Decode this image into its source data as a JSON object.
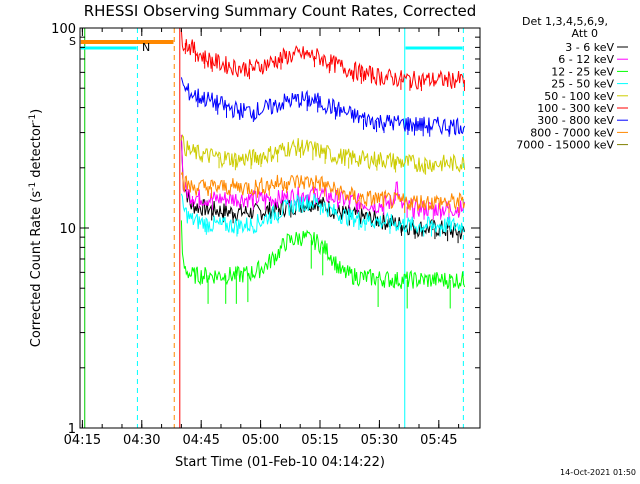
{
  "chart_data": {
    "type": "line",
    "title": "RHESSI Observing Summary Count Rates, Corrected",
    "xlabel": "Start Time (01-Feb-10 04:14:22)",
    "ylabel_main": "Corrected Count Rate (s",
    "ylabel_sup1": "-1",
    "ylabel_mid": " detector",
    "ylabel_sup2": "-1",
    "ylabel_end": ")",
    "yscale": "log",
    "ylim": [
      1,
      100
    ],
    "xlim_minutes": [
      0,
      101
    ],
    "x_ticks": [
      {
        "label": "04:15",
        "minute": 0.6
      },
      {
        "label": "04:30",
        "minute": 15.6
      },
      {
        "label": "04:45",
        "minute": 30.6
      },
      {
        "label": "05:00",
        "minute": 45.6
      },
      {
        "label": "05:15",
        "minute": 60.6
      },
      {
        "label": "05:30",
        "minute": 75.6
      },
      {
        "label": "05:45",
        "minute": 90.6
      }
    ],
    "y_ticks": [
      {
        "label": "100",
        "value": 100
      },
      {
        "label": "10",
        "value": 10
      },
      {
        "label": "1",
        "value": 1
      }
    ],
    "legend_header": [
      "Det 1,3,4,5,6,9,",
      "Att 0"
    ],
    "legend_position": "top-right",
    "series": [
      {
        "name": "3 - 6 keV",
        "color": "#000000",
        "start": 25.6,
        "end": 97.2,
        "points": [
          [
            25.6,
            28
          ],
          [
            26,
            17
          ],
          [
            28,
            13
          ],
          [
            32,
            12.5
          ],
          [
            38,
            12
          ],
          [
            45,
            12
          ],
          [
            50,
            12.5
          ],
          [
            55,
            13
          ],
          [
            60,
            13.5
          ],
          [
            65,
            12
          ],
          [
            70,
            11.5
          ],
          [
            75,
            11
          ],
          [
            80,
            10.5
          ],
          [
            85,
            10
          ],
          [
            90,
            10
          ],
          [
            96,
            9.5
          ]
        ]
      },
      {
        "name": "6 - 12 keV",
        "color": "#ff00ff",
        "start": 25.6,
        "end": 97.2,
        "points": [
          [
            25.6,
            32
          ],
          [
            26,
            16
          ],
          [
            28,
            14.5
          ],
          [
            32,
            14
          ],
          [
            38,
            14
          ],
          [
            45,
            14
          ],
          [
            50,
            14
          ],
          [
            55,
            14.5
          ],
          [
            60,
            15
          ],
          [
            65,
            14
          ],
          [
            70,
            13.5
          ],
          [
            75,
            13
          ],
          [
            79,
            13.5
          ],
          [
            80,
            17
          ],
          [
            80.8,
            13
          ],
          [
            85,
            12.5
          ],
          [
            90,
            12.5
          ],
          [
            96,
            12.5
          ]
        ]
      },
      {
        "name": "12 - 25 keV",
        "color": "#00ff00",
        "start": 25.6,
        "end": 97.2,
        "points": [
          [
            25.6,
            10
          ],
          [
            26,
            6.5
          ],
          [
            28,
            5.8
          ],
          [
            32,
            5.8
          ],
          [
            36,
            5.8
          ],
          [
            40,
            5.8
          ],
          [
            44,
            6
          ],
          [
            47,
            6.5
          ],
          [
            50,
            7.5
          ],
          [
            52,
            8.5
          ],
          [
            56,
            9
          ],
          [
            60,
            8.5
          ],
          [
            63,
            7.5
          ],
          [
            66,
            6
          ],
          [
            70,
            5.7
          ],
          [
            75,
            5.6
          ],
          [
            80,
            5.5
          ],
          [
            85,
            5.5
          ],
          [
            90,
            5.5
          ],
          [
            96,
            5.5
          ]
        ]
      },
      {
        "name": "25 - 50 keV",
        "color": "#00ffff",
        "start": 25.6,
        "end": 97.2,
        "points": [
          [
            25.6,
            14
          ],
          [
            26,
            12.5
          ],
          [
            28,
            11
          ],
          [
            32,
            10.5
          ],
          [
            36,
            10.3
          ],
          [
            40,
            10.3
          ],
          [
            44,
            10.4
          ],
          [
            48,
            11.5
          ],
          [
            52,
            12.5
          ],
          [
            56,
            13.5
          ],
          [
            60,
            13.5
          ],
          [
            64,
            12
          ],
          [
            68,
            11.3
          ],
          [
            72,
            11
          ],
          [
            76,
            10.8
          ],
          [
            80,
            10.5
          ],
          [
            84,
            10.3
          ],
          [
            88,
            10.3
          ],
          [
            92,
            10.3
          ],
          [
            96,
            10.3
          ]
        ]
      },
      {
        "name": "50 - 100 keV",
        "color": "#cccc00",
        "start": 25.6,
        "end": 97.2,
        "points": [
          [
            25.6,
            30
          ],
          [
            26,
            26
          ],
          [
            28,
            24
          ],
          [
            32,
            23
          ],
          [
            36,
            22.5
          ],
          [
            40,
            22
          ],
          [
            44,
            22.5
          ],
          [
            48,
            23.5
          ],
          [
            52,
            25
          ],
          [
            56,
            25.5
          ],
          [
            60,
            24.5
          ],
          [
            64,
            23
          ],
          [
            68,
            22.5
          ],
          [
            72,
            22
          ],
          [
            76,
            22
          ],
          [
            80,
            21.5
          ],
          [
            84,
            21
          ],
          [
            88,
            21
          ],
          [
            92,
            21
          ],
          [
            96,
            21
          ]
        ]
      },
      {
        "name": "100 - 300 keV",
        "color": "#ff0000",
        "start": 25.6,
        "end": 97.2,
        "points": [
          [
            25.6,
            95
          ],
          [
            26,
            86
          ],
          [
            28,
            80
          ],
          [
            32,
            70
          ],
          [
            36,
            66
          ],
          [
            40,
            63
          ],
          [
            44,
            63
          ],
          [
            48,
            67
          ],
          [
            52,
            72
          ],
          [
            56,
            74
          ],
          [
            60,
            72
          ],
          [
            64,
            66
          ],
          [
            68,
            62
          ],
          [
            72,
            59
          ],
          [
            76,
            57
          ],
          [
            80,
            56
          ],
          [
            84,
            55
          ],
          [
            88,
            55
          ],
          [
            92,
            55
          ],
          [
            96,
            55
          ]
        ]
      },
      {
        "name": "300 - 800 keV",
        "color": "#0000ff",
        "start": 25.6,
        "end": 97.2,
        "points": [
          [
            25.6,
            60
          ],
          [
            26,
            50
          ],
          [
            28,
            47
          ],
          [
            32,
            44
          ],
          [
            36,
            41
          ],
          [
            40,
            38.5
          ],
          [
            44,
            38.5
          ],
          [
            48,
            40
          ],
          [
            52,
            43
          ],
          [
            56,
            44
          ],
          [
            60,
            43
          ],
          [
            64,
            40
          ],
          [
            68,
            37
          ],
          [
            72,
            35
          ],
          [
            76,
            34
          ],
          [
            80,
            33.5
          ],
          [
            84,
            33
          ],
          [
            88,
            32.5
          ],
          [
            92,
            32.5
          ],
          [
            96,
            32.5
          ]
        ]
      },
      {
        "name": "800 - 7000 keV",
        "color": "#ff8800",
        "start": 25.6,
        "end": 97.2,
        "points": [
          [
            25.6,
            20
          ],
          [
            26,
            17
          ],
          [
            28,
            16
          ],
          [
            32,
            16
          ],
          [
            36,
            16
          ],
          [
            40,
            16
          ],
          [
            44,
            16
          ],
          [
            48,
            16.5
          ],
          [
            52,
            17
          ],
          [
            56,
            17
          ],
          [
            60,
            17
          ],
          [
            64,
            15.5
          ],
          [
            68,
            14.5
          ],
          [
            72,
            14
          ],
          [
            76,
            14
          ],
          [
            80,
            13.5
          ],
          [
            84,
            13.5
          ],
          [
            88,
            13.5
          ],
          [
            92,
            13.5
          ],
          [
            96,
            13.5
          ]
        ]
      },
      {
        "name": "7000 - 15000 keV",
        "color": "#808000",
        "start": 25.6,
        "end": 97.2,
        "points": []
      }
    ],
    "annotations": [
      {
        "text": "S",
        "color": "#ff8800"
      },
      {
        "text": "N",
        "color": "#00ffff"
      }
    ],
    "timestamp": "14-Oct-2021 01:50"
  }
}
